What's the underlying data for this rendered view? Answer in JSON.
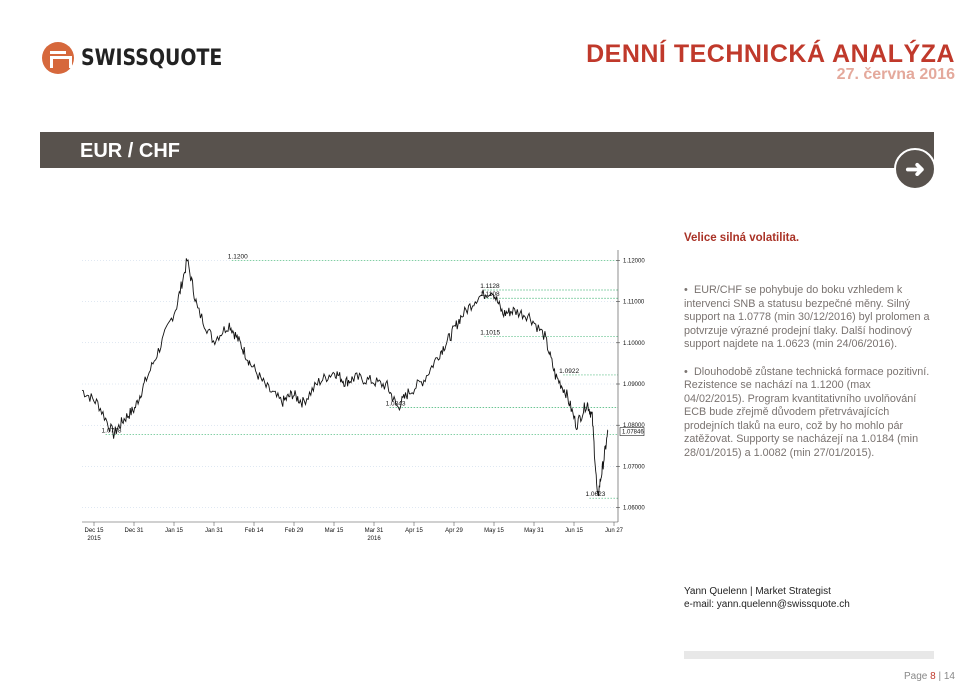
{
  "header": {
    "logo_text": "SWISSQUOTE",
    "title": "DENNÍ TECHNICKÁ ANALÝZA",
    "date": "27. června 2016"
  },
  "section": {
    "title": "EUR / CHF",
    "subheading": "Velice silná volatilita."
  },
  "bullets": [
    "EUR/CHF se pohybuje do boku vzhledem k intervenci SNB a statusu bezpečné měny. Silný support na 1.0778 (min 30/12/2016) byl prolomen a potvrzuje výrazné prodejní tlaky. Další hodinový support najdete na 1.0623 (min 24/06/2016).",
    "Dlouhodobě zůstane technická formace pozitivní. Rezistence se nachází na 1.1200 (max 04/02/2015). Program kvantitativního uvolňování ECB bude zřejmě důvodem přetrvávajících prodejních tlaků na euro, což by ho mohlo pár zatěžovat. Supporty se nacházejí na 1.0184 (min 28/01/2015) a 1.0082 (min 27/01/2015)."
  ],
  "author": {
    "name": "Yann Quelenn | Market Strategist",
    "email": "e-mail: yann.quelenn@swissquote.ch"
  },
  "footer": {
    "page_label": "Page",
    "current": "8",
    "sep": "|",
    "total": "14"
  },
  "colors": {
    "accent": "#c0392b",
    "bar": "#58524d",
    "logo": "#d6683c",
    "level_line": "#3cb371"
  },
  "chart_data": {
    "type": "line",
    "y_ticks": [
      "1.12000",
      "1.11000",
      "1.10000",
      "1.09000",
      "1.08000",
      "1.07000",
      "1.06000"
    ],
    "y_range": [
      1.0575,
      1.1225
    ],
    "current_price": "1.07846",
    "x_ticks": [
      "Dec 15",
      "Dec 31",
      "Jan 15",
      "Jan 31",
      "Feb 14",
      "Feb 29",
      "Mar 15",
      "Mar 31",
      "Apr 15",
      "Apr 29",
      "May 15",
      "May 31",
      "Jun 15",
      "Jun 27"
    ],
    "x_sub_labels": [
      {
        "under": "Dec 15",
        "text": "2015"
      },
      {
        "under": "Mar 31",
        "text": "2016"
      }
    ],
    "levels": [
      "1.1200",
      "1.1128",
      "1.1108",
      "1.1015",
      "1.0922",
      "1.0843",
      "1.0778",
      "1.0623"
    ],
    "series": [
      {
        "x": [
          0,
          0.03,
          0.06,
          0.08,
          0.1,
          0.12,
          0.15,
          0.18,
          0.2,
          0.22,
          0.25,
          0.28,
          0.3,
          0.32,
          0.35,
          0.38,
          0.4,
          0.42,
          0.45,
          0.48,
          0.5,
          0.52,
          0.55,
          0.58,
          0.6,
          0.62,
          0.65,
          0.68,
          0.7,
          0.72,
          0.75,
          0.78,
          0.8,
          0.82,
          0.85,
          0.88,
          0.9,
          0.92,
          0.94,
          0.96,
          0.97,
          0.98,
          0.99,
          1.0
        ],
        "values": [
          1.0885,
          1.0853,
          1.0778,
          1.0815,
          1.084,
          1.0905,
          1.0995,
          1.109,
          1.12,
          1.108,
          1.1005,
          1.1045,
          1.1,
          1.095,
          1.0893,
          1.0855,
          1.0876,
          1.0855,
          1.0905,
          1.093,
          1.0905,
          1.0915,
          1.0908,
          1.0895,
          1.0843,
          1.0878,
          1.091,
          1.0975,
          1.1015,
          1.1062,
          1.1108,
          1.1128,
          1.107,
          1.1078,
          1.1065,
          1.1015,
          1.092,
          1.088,
          1.08,
          1.0855,
          1.082,
          1.0623,
          1.07,
          1.0785
        ]
      }
    ]
  }
}
